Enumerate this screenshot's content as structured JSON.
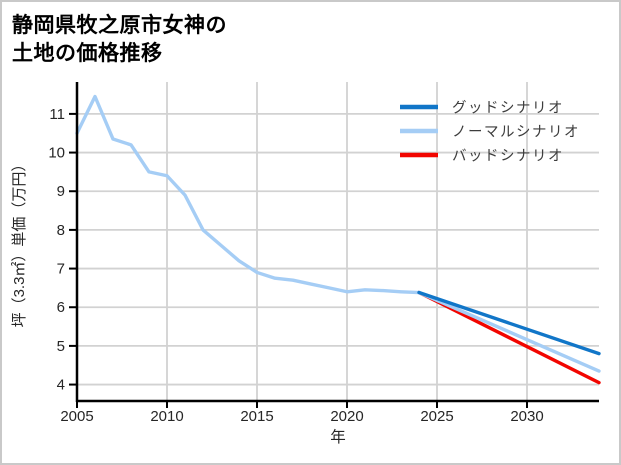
{
  "title": {
    "line1": "静岡県牧之原市女神の",
    "line2": "土地の価格推移"
  },
  "chart_data": {
    "type": "line",
    "title": "静岡県牧之原市女神の土地の価格推移",
    "xlabel": "年",
    "ylabel": "坪（3.3㎡）単価（万円）",
    "x_ticks": [
      2005,
      2010,
      2015,
      2020,
      2025,
      2030
    ],
    "y_ticks": [
      4,
      5,
      6,
      7,
      8,
      9,
      10,
      11
    ],
    "x_range": [
      2005,
      2034
    ],
    "y_range": [
      3.575,
      11.825
    ],
    "grid": true,
    "legend_position": "upper-right",
    "colors": {
      "good": "#1176c8",
      "normal": "#a5cdf5",
      "bad": "#f20500",
      "gridline": "#d2d2d2",
      "axis": "#000000",
      "tick_text": "#262626",
      "legend_text": "#3d3d3d"
    },
    "series": [
      {
        "name": "グッドシナリオ",
        "color": "#1176c8",
        "x": [
          2024,
          2034
        ],
        "y": [
          6.38,
          4.8
        ]
      },
      {
        "name": "ノーマルシナリオ",
        "color": "#a5cdf5",
        "x": [
          2005,
          2006,
          2007,
          2008,
          2009,
          2010,
          2011,
          2012,
          2013,
          2014,
          2015,
          2016,
          2017,
          2018,
          2019,
          2020,
          2021,
          2022,
          2023,
          2024,
          2034
        ],
        "y": [
          10.5,
          11.45,
          10.35,
          10.2,
          9.5,
          9.4,
          8.9,
          8.0,
          7.6,
          7.2,
          6.9,
          6.75,
          6.7,
          6.6,
          6.5,
          6.4,
          6.45,
          6.43,
          6.4,
          6.38,
          4.35
        ]
      },
      {
        "name": "バッドシナリオ",
        "color": "#f20500",
        "x": [
          2024,
          2034
        ],
        "y": [
          6.38,
          4.05
        ]
      }
    ]
  }
}
